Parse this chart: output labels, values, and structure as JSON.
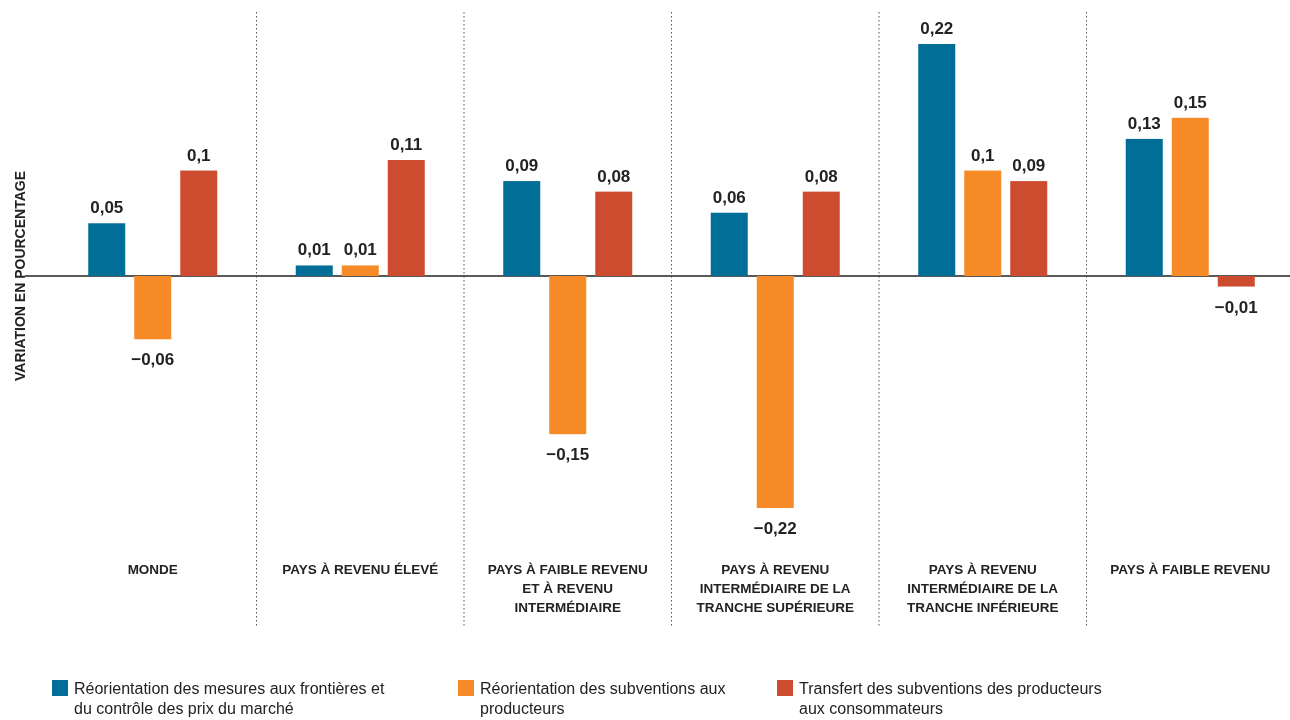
{
  "chart_data": {
    "type": "bar",
    "ylabel": "VARIATION EN POURCENTAGE",
    "categories": [
      "MONDE",
      "PAYS À REVENU ÉLEVÉ",
      "PAYS À FAIBLE REVENU ET À REVENU INTERMÉDIAIRE",
      "PAYS À REVENU INTERMÉDIAIRE DE LA TRANCHE SUPÉRIEURE",
      "PAYS À REVENU INTERMÉDIAIRE DE LA TRANCHE INFÉRIEURE",
      "PAYS À FAIBLE REVENU"
    ],
    "series": [
      {
        "name": "Réorientation des mesures aux frontières et du contrôle des prix du marché",
        "color": "#006e96",
        "values": [
          0.05,
          0.01,
          0.09,
          0.06,
          0.22,
          0.13
        ],
        "value_labels": [
          "0,05",
          "0,01",
          "0,09",
          "0,06",
          "0,22",
          "0,13"
        ]
      },
      {
        "name": "Réorientation des subventions aux producteurs",
        "color": "#f58a26",
        "values": [
          -0.06,
          0.01,
          -0.15,
          -0.22,
          0.1,
          0.15
        ],
        "value_labels": [
          "−0,06",
          "0,01",
          "−0,15",
          "−0,22",
          "0,1",
          "0,15"
        ]
      },
      {
        "name": "Transfert des subventions des producteurs aux consommateurs",
        "color": "#cd4b2e",
        "values": [
          0.1,
          0.11,
          0.08,
          0.08,
          0.09,
          -0.01
        ],
        "value_labels": [
          "0,1",
          "0,11",
          "0,08",
          "0,08",
          "0,09",
          "−0,01"
        ]
      }
    ],
    "legend": "bottom"
  }
}
